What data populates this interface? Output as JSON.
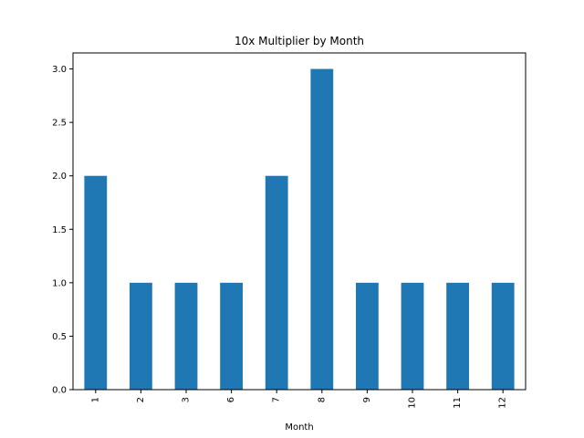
{
  "chart_data": {
    "type": "bar",
    "title": "10x Multiplier by Month",
    "xlabel": "Month",
    "ylabel": "",
    "categories": [
      "1",
      "2",
      "3",
      "6",
      "7",
      "8",
      "9",
      "10",
      "11",
      "12"
    ],
    "values": [
      2,
      1,
      1,
      1,
      2,
      3,
      1,
      1,
      1,
      1
    ],
    "ylim": [
      0,
      3.15
    ],
    "yticks": [
      "0.0",
      "0.5",
      "1.0",
      "1.5",
      "2.0",
      "2.5",
      "3.0"
    ],
    "x_tick_rotation": "vertical",
    "grid": false,
    "legend": "none",
    "bar_color": "#1f77b4"
  }
}
